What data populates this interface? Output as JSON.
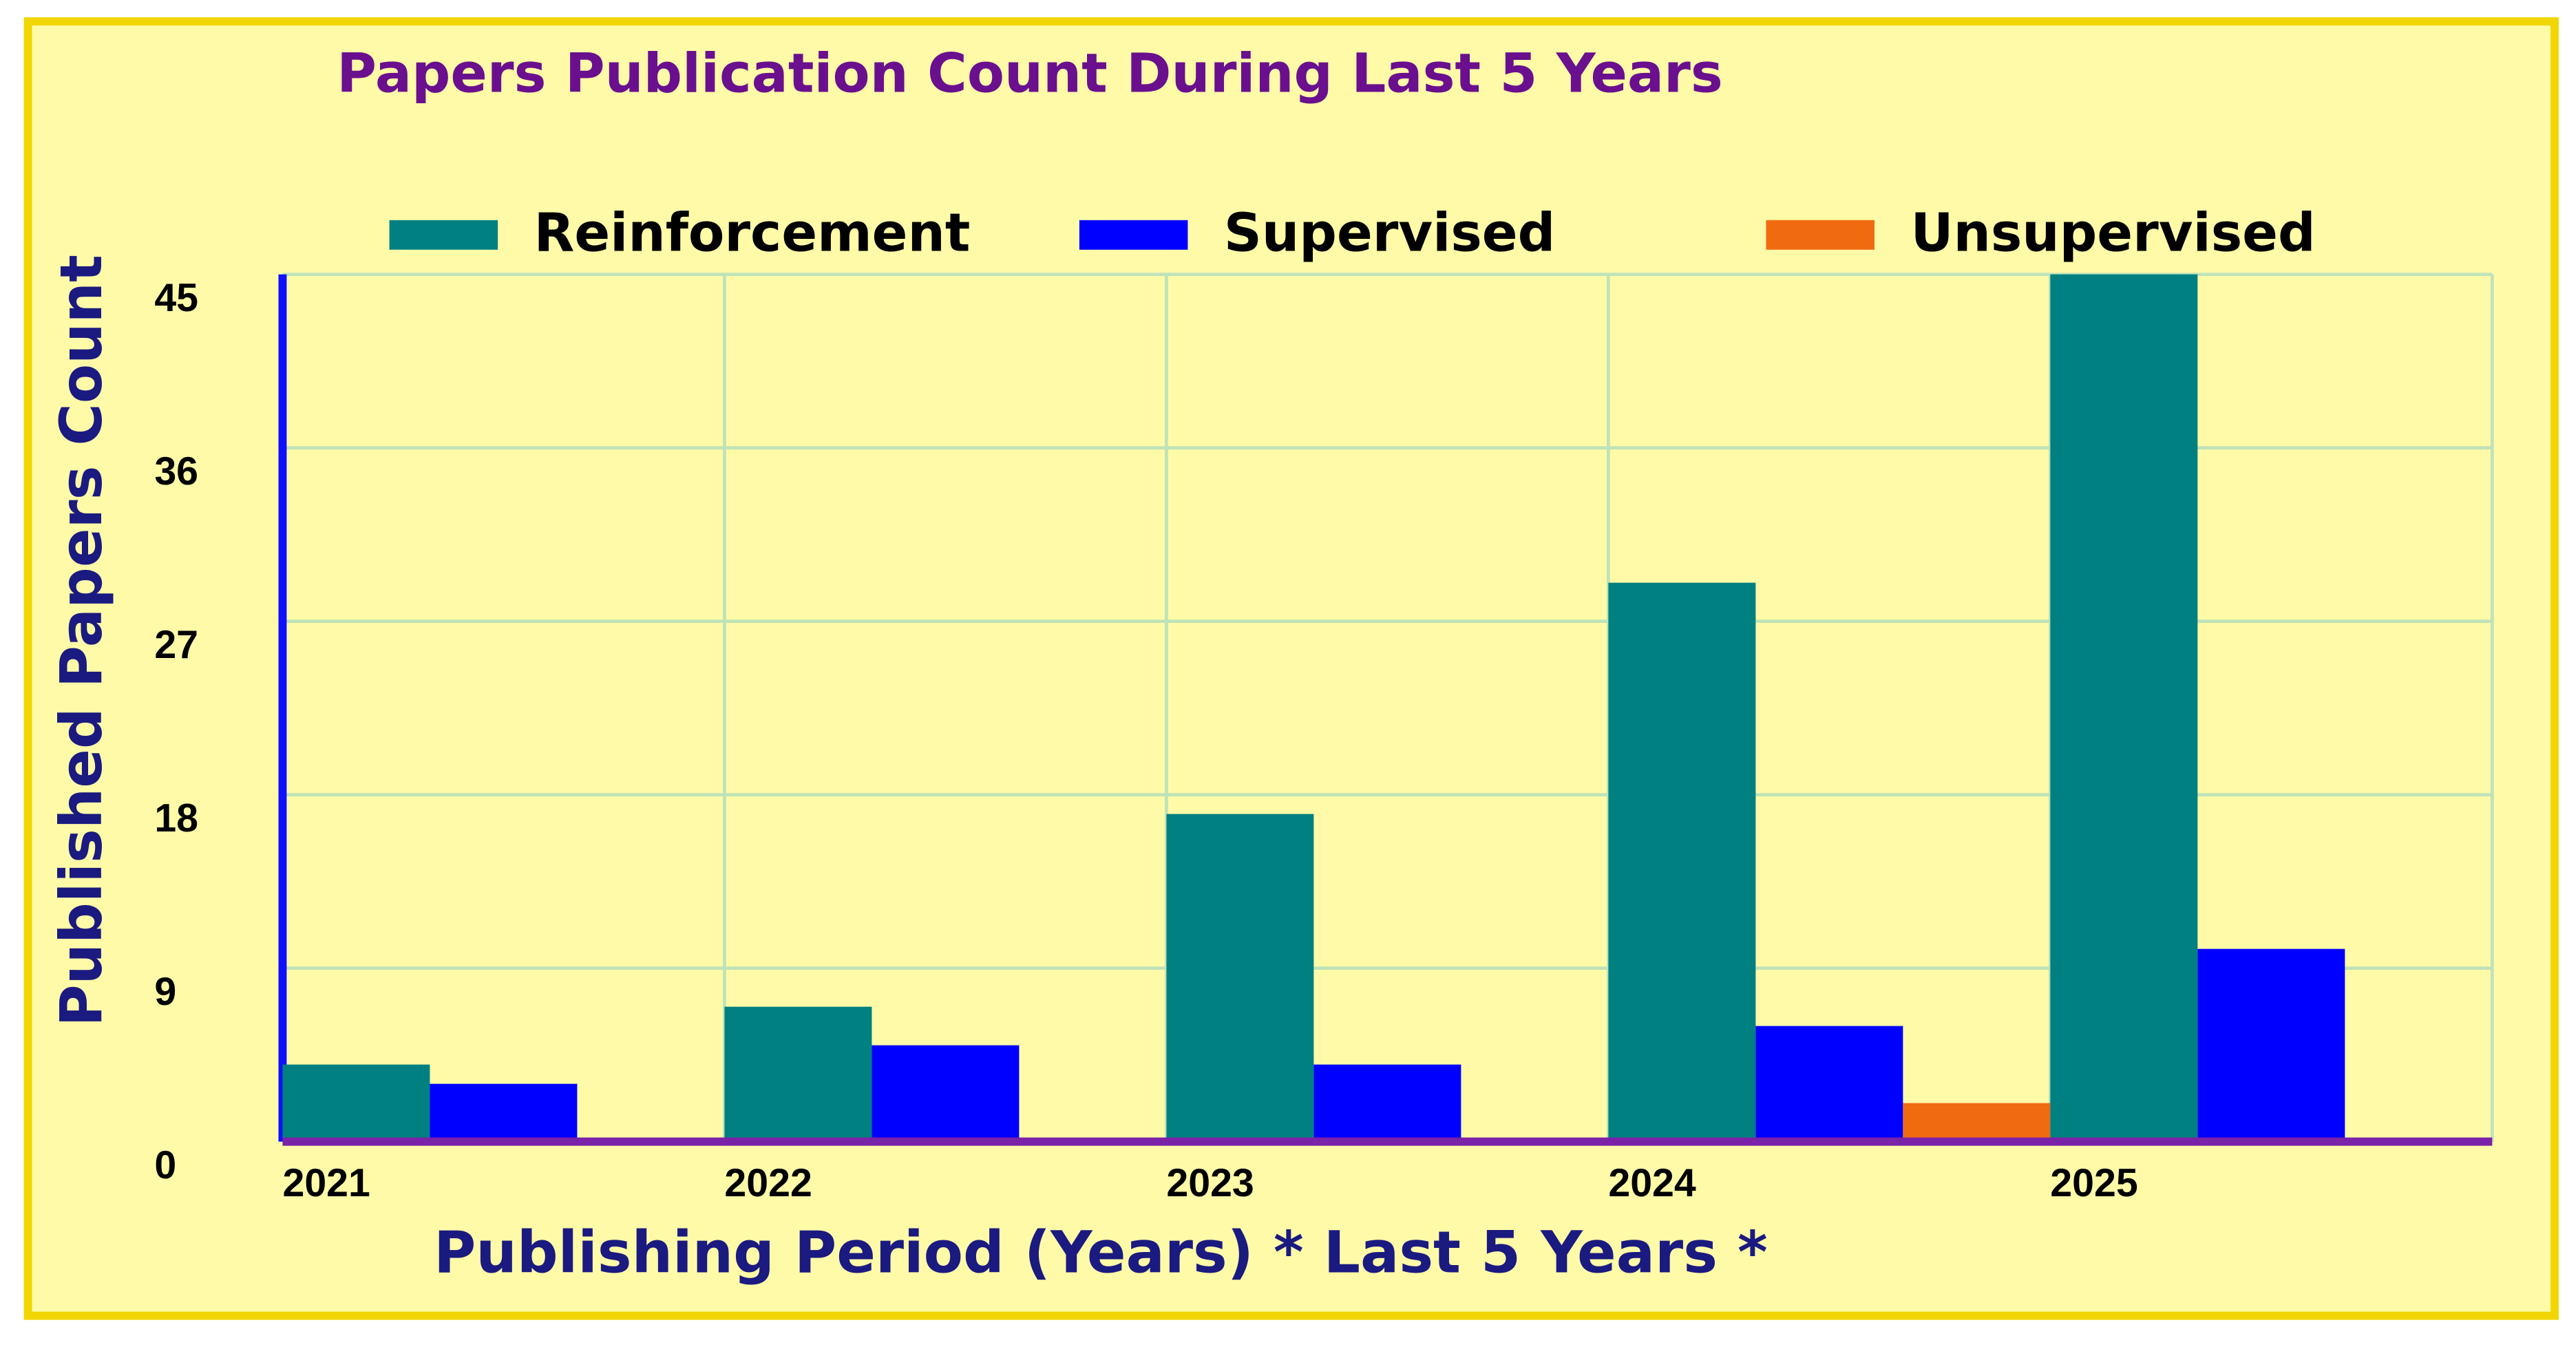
{
  "chart_data": {
    "type": "bar",
    "title": "Papers Publication Count During Last 5 Years",
    "x_label": "Publishing Period (Years) * Last 5 Years *",
    "y_label": "Published Papers Count",
    "categories": [
      "2021",
      "2022",
      "2023",
      "2024",
      "2025"
    ],
    "series": [
      {
        "name": "Reinforcement",
        "color": "#008080",
        "values": [
          4,
          7,
          17,
          29,
          45
        ]
      },
      {
        "name": "Supervised",
        "color": "#0000ff",
        "values": [
          3,
          5,
          4,
          6,
          10
        ]
      },
      {
        "name": "Unsupervised",
        "color": "#f06a10",
        "values": [
          0,
          0,
          0,
          2,
          0
        ]
      }
    ],
    "ylim": [
      0,
      45
    ],
    "yticks": [
      0,
      9,
      18,
      27,
      36,
      45
    ],
    "grid": true
  }
}
